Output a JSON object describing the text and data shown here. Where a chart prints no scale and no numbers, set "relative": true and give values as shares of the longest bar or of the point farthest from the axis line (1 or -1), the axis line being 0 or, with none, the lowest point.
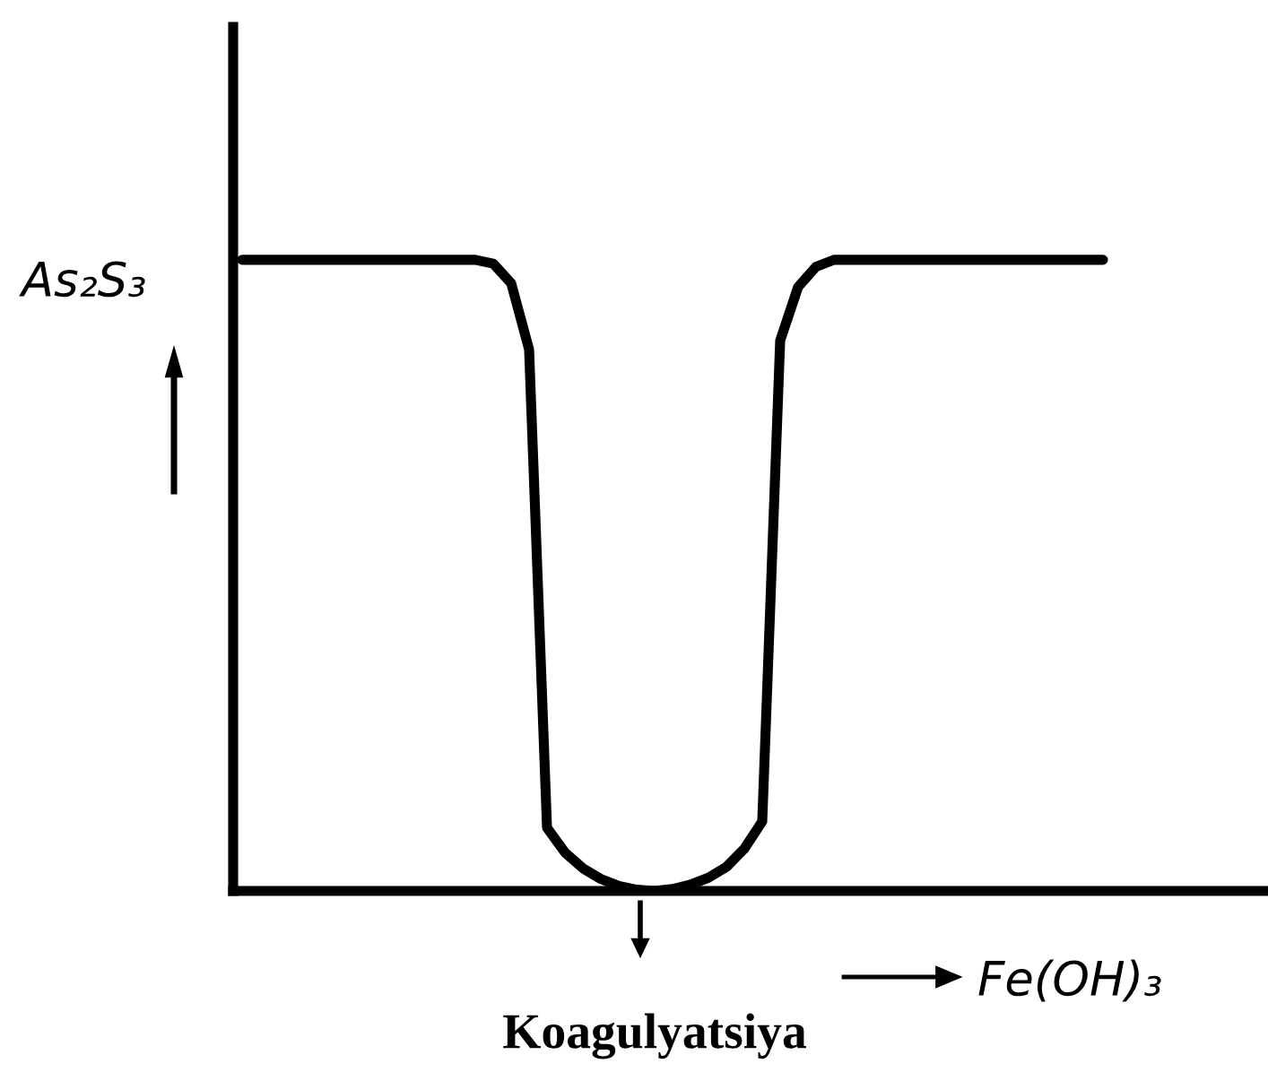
{
  "chart_data": {
    "type": "line",
    "relative": true,
    "ylabel": "As₂S₃",
    "xlabel": "Fe(OH)₃",
    "annotations": [
      "Koagulyatsiya"
    ],
    "categories": [
      null,
      null,
      null,
      null,
      null,
      null,
      null,
      null,
      null,
      null,
      null,
      null,
      null,
      null,
      null,
      null,
      null,
      null,
      null,
      null,
      null,
      null,
      null,
      null,
      null,
      null,
      null,
      null,
      null,
      null,
      null,
      null,
      null,
      null,
      null,
      null,
      null,
      null,
      null,
      null,
      null,
      null,
      null,
      null,
      null,
      null,
      null,
      null,
      null
    ],
    "series": [
      {
        "color": "#000000",
        "values": [
          1,
          1,
          1,
          1,
          1,
          1,
          1,
          1,
          1,
          1,
          1,
          1,
          1,
          1,
          0.994,
          0.963,
          0.858,
          0.1,
          0.061,
          0.036,
          0.019,
          0.008,
          0.002,
          0,
          0.003,
          0.01,
          0.021,
          0.038,
          0.067,
          0.11,
          0.872,
          0.957,
          0.989,
          1,
          1,
          1,
          1,
          1,
          1,
          1,
          1,
          1,
          1,
          1,
          1,
          1,
          1,
          1,
          1
        ]
      }
    ],
    "marker": "none",
    "line_style": "solid",
    "grid": false,
    "legend": false
  }
}
